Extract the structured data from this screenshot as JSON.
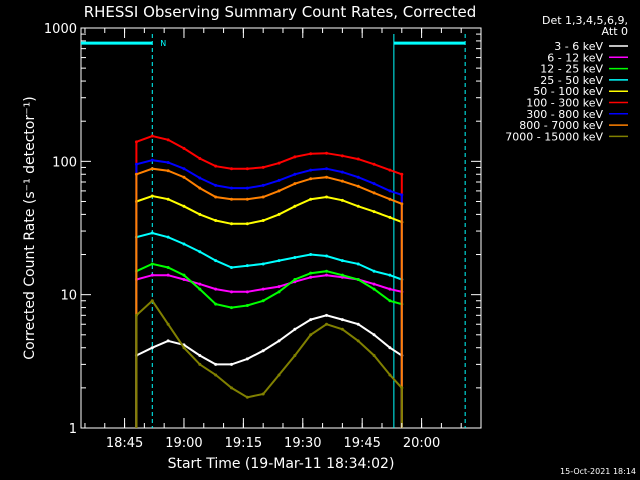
{
  "chart_data": {
    "type": "line",
    "title": "RHESSI Observing Summary Count Rates, Corrected",
    "xlabel": "Start Time (19-Mar-11 18:34:02)",
    "ylabel": "Corrected Count Rate (s⁻¹ detector⁻¹)",
    "y_scale": "log",
    "ylim": [
      1,
      1000
    ],
    "xlim": [
      "18:34",
      "20:15"
    ],
    "x_ticks": [
      "18:45",
      "19:00",
      "19:15",
      "19:30",
      "19:45",
      "20:00"
    ],
    "y_ticks": [
      "1",
      "10",
      "100",
      "1000"
    ],
    "grid": false,
    "legend": {
      "placement": "top-right",
      "header": [
        "Det 1,3,4,5,6,9,",
        "Att 0"
      ]
    },
    "annotations": {
      "footer_timestamp": "15-Oct-2021 18:14",
      "night_marker": "N",
      "attenuator_level": 770,
      "night_start": "18:52",
      "night_end": "20:11",
      "day_start": "19:53",
      "data_start": "18:48",
      "data_end": "19:55"
    },
    "x": [
      "18:48",
      "18:52",
      "18:56",
      "19:00",
      "19:04",
      "19:08",
      "19:12",
      "19:16",
      "19:20",
      "19:24",
      "19:28",
      "19:32",
      "19:36",
      "19:40",
      "19:44",
      "19:48",
      "19:52",
      "19:55"
    ],
    "series": [
      {
        "name": "3 - 6 keV",
        "color": "#ffffff",
        "values": [
          3.5,
          4,
          4.5,
          4.2,
          3.5,
          3,
          3,
          3.3,
          3.8,
          4.5,
          5.5,
          6.5,
          7,
          6.5,
          6,
          5,
          4,
          3.5
        ]
      },
      {
        "name": "6 - 12 keV",
        "color": "#ff00ff",
        "values": [
          13,
          14,
          14,
          13,
          12,
          11,
          10.5,
          10.5,
          11,
          11.5,
          12.5,
          13.5,
          14,
          13.5,
          13,
          12,
          11,
          10.5
        ]
      },
      {
        "name": "12 - 25 keV",
        "color": "#00ff00",
        "values": [
          15,
          17,
          16,
          14,
          11,
          8.5,
          8,
          8.3,
          9,
          10.5,
          13,
          14.5,
          15,
          14,
          13,
          11,
          9,
          8.5
        ]
      },
      {
        "name": "25 - 50 keV",
        "color": "#00ffff",
        "values": [
          27,
          29,
          27,
          24,
          21,
          18,
          16,
          16.5,
          17,
          18,
          19,
          20,
          19.5,
          18,
          17,
          15,
          14,
          13
        ]
      },
      {
        "name": "50 - 100 keV",
        "color": "#ffff00",
        "values": [
          50,
          55,
          52,
          46,
          40,
          36,
          34,
          34,
          36,
          40,
          46,
          52,
          54,
          51,
          46,
          42,
          38,
          35
        ]
      },
      {
        "name": "100 - 300 keV",
        "color": "#ff0000",
        "values": [
          140,
          155,
          145,
          125,
          105,
          92,
          88,
          88,
          90,
          97,
          108,
          114,
          115,
          110,
          104,
          95,
          86,
          80
        ]
      },
      {
        "name": "300 - 800 keV",
        "color": "#0000ff",
        "values": [
          95,
          102,
          98,
          88,
          75,
          66,
          63,
          63,
          66,
          72,
          80,
          86,
          88,
          83,
          76,
          68,
          60,
          56
        ]
      },
      {
        "name": "800 - 7000 keV",
        "color": "#ff8000",
        "values": [
          80,
          88,
          85,
          76,
          63,
          54,
          52,
          52,
          54,
          60,
          68,
          74,
          76,
          71,
          65,
          58,
          52,
          48
        ]
      },
      {
        "name": "7000 - 15000 keV",
        "color": "#808000",
        "values": [
          7,
          9,
          6,
          4,
          3,
          2.5,
          2,
          1.7,
          1.8,
          2.5,
          3.5,
          5,
          6,
          5.5,
          4.5,
          3.5,
          2.5,
          2
        ]
      }
    ]
  }
}
